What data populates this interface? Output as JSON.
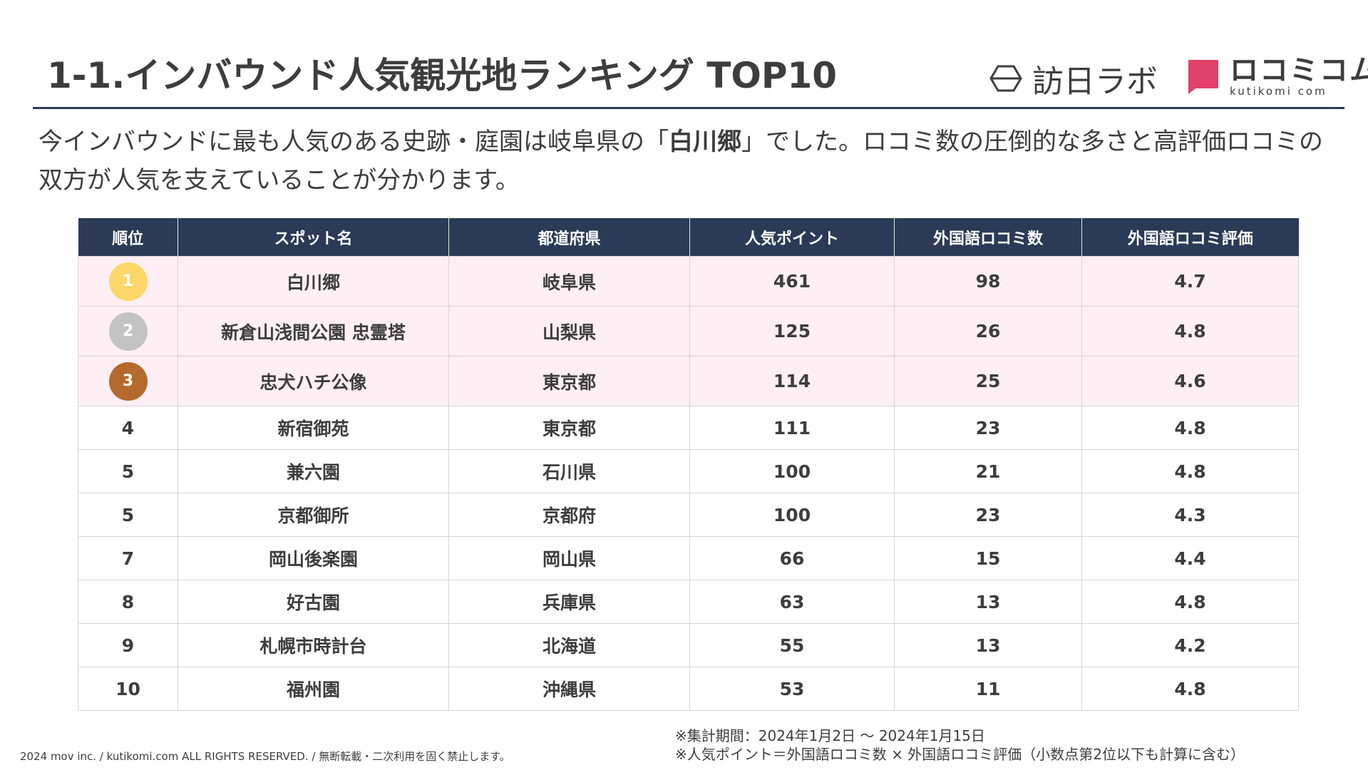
{
  "title": "1-1.インバウンド人気観光地ランキング TOP10",
  "logos": {
    "hounichi": "訪日ラボ",
    "kuchikomi_jp": "ロコミコム",
    "kuchikomi_en": "kutikomi com",
    "colors": {
      "kuchikomi_mark": "#e0406a",
      "hounichi_mark": "#3d3d3d"
    }
  },
  "lead": {
    "before": "今インバウンドに最も人気のある史跡・庭園は岐阜県の「",
    "highlight": "白川郷",
    "after": "」でした。ロコミ数の圧倒的な多さと高評価ロコミの双方が人気を支えていることが分かります。"
  },
  "table": {
    "headers": [
      "順位",
      "スポット名",
      "都道府県",
      "人気ポイント",
      "外国語ロコミ数",
      "外国語ロコミ評価"
    ],
    "rows": [
      {
        "rank": "1",
        "spot": "白川郷",
        "pref": "岐阜県",
        "points": "461",
        "reviews": "98",
        "rating": "4.7",
        "medal_color": "#fdd76a"
      },
      {
        "rank": "2",
        "spot": "新倉山浅間公園 忠霊塔",
        "pref": "山梨県",
        "points": "125",
        "reviews": "26",
        "rating": "4.8",
        "medal_color": "#c3c3c3"
      },
      {
        "rank": "3",
        "spot": "忠犬ハチ公像",
        "pref": "東京都",
        "points": "114",
        "reviews": "25",
        "rating": "4.6",
        "medal_color": "#b56a2d"
      },
      {
        "rank": "4",
        "spot": "新宿御苑",
        "pref": "東京都",
        "points": "111",
        "reviews": "23",
        "rating": "4.8"
      },
      {
        "rank": "5",
        "spot": "兼六園",
        "pref": "石川県",
        "points": "100",
        "reviews": "21",
        "rating": "4.8"
      },
      {
        "rank": "5",
        "spot": "京都御所",
        "pref": "京都府",
        "points": "100",
        "reviews": "23",
        "rating": "4.3"
      },
      {
        "rank": "7",
        "spot": "岡山後楽園",
        "pref": "岡山県",
        "points": "66",
        "reviews": "15",
        "rating": "4.4"
      },
      {
        "rank": "8",
        "spot": "好古園",
        "pref": "兵庫県",
        "points": "63",
        "reviews": "13",
        "rating": "4.8"
      },
      {
        "rank": "9",
        "spot": "札幌市時計台",
        "pref": "北海道",
        "points": "55",
        "reviews": "13",
        "rating": "4.2"
      },
      {
        "rank": "10",
        "spot": "福州園",
        "pref": "沖縄県",
        "points": "53",
        "reviews": "11",
        "rating": "4.8"
      }
    ]
  },
  "notes": {
    "period": "※集計期間：2024年1月2日 〜 2024年1月15日",
    "formula": "※人気ポイント＝外国語ロコミ数 × 外国語ロコミ評価（小数点第2位以下も計算に含む）"
  },
  "copyright": "2024 mov inc. / kutikomi.com ALL RIGHTS RESERVED. / 無断転載・二次利用を固く禁止します。"
}
